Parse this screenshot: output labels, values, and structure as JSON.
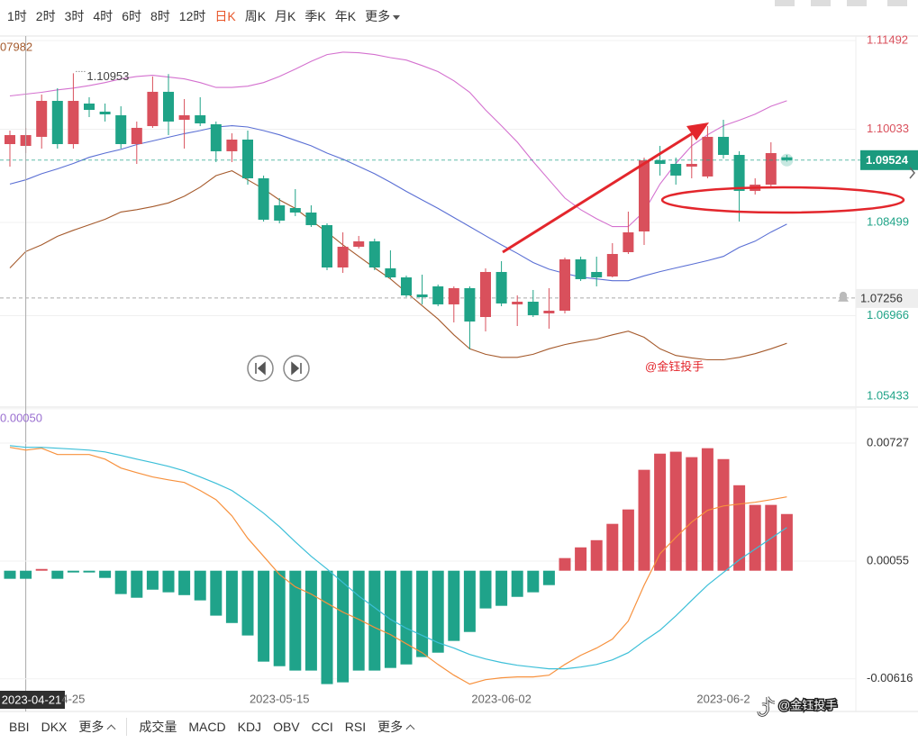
{
  "toolbar": {
    "periods": [
      "1时",
      "2时",
      "3时",
      "4时",
      "6时",
      "8时",
      "12时",
      "日K",
      "周K",
      "月K",
      "季K",
      "年K"
    ],
    "more": "更多",
    "active": 7
  },
  "chart_data": [
    {
      "type": "candlestick",
      "categories": [
        null,
        "2023-04-21",
        null,
        null,
        "4-25",
        null,
        null,
        null,
        null,
        null,
        null,
        null,
        null,
        null,
        null,
        null,
        null,
        "2023-05-15",
        null,
        null,
        null,
        null,
        null,
        null,
        null,
        null,
        null,
        null,
        null,
        null,
        null,
        "2023-06-02",
        null,
        null,
        null,
        null,
        null,
        null,
        null,
        null,
        null,
        null,
        null,
        null,
        null,
        "2023-06-2",
        null,
        null,
        null,
        null
      ],
      "crosshair": 1,
      "open": [
        1.09788,
        1.09758,
        1.09907,
        1.10499,
        1.09788,
        1.10455,
        1.10322,
        1.10262,
        1.09788,
        1.10084,
        1.10648,
        1.10188,
        1.10262,
        1.10114,
        1.0967,
        1.09862,
        1.09225,
        1.08781,
        1.08736,
        1.08662,
        1.08455,
        1.07758,
        1.08099,
        1.08188,
        1.07744,
        1.07595,
        1.07314,
        1.07447,
        1.07151,
        1.07418,
        1.06943,
        1.07684,
        1.07151,
        1.07195,
        1.07003,
        1.07047,
        1.07892,
        1.07684,
        1.0761,
        1.0801,
        1.08351,
        1.09521,
        1.09462,
        1.09418,
        1.09255,
        1.09907,
        1.0961,
        1.09018,
        1.09121,
        1.0957
      ],
      "high": [
        1.1001,
        1.10055,
        1.10603,
        1.10707,
        1.10953,
        1.10559,
        1.10455,
        1.1041,
        1.10159,
        1.109,
        1.1094,
        1.10529,
        1.10559,
        1.10159,
        1.09966,
        1.1001,
        1.0927,
        1.08899,
        1.09047,
        1.08781,
        1.08484,
        1.08336,
        1.08277,
        1.08232,
        1.0804,
        1.07625,
        1.0764,
        1.07477,
        1.07447,
        1.07447,
        1.07744,
        1.07862,
        1.07299,
        1.07388,
        1.07418,
        1.07921,
        1.07936,
        1.07936,
        1.08158,
        1.08677,
        1.09566,
        1.09758,
        1.09566,
        1.09936,
        1.10084,
        1.10188,
        1.0967,
        1.09225,
        1.09818,
        1.0961
      ],
      "low": [
        1.09418,
        1.0964,
        1.09714,
        1.09714,
        1.09714,
        1.10233,
        1.10159,
        1.09714,
        1.09462,
        1.10055,
        1.09936,
        1.09714,
        1.10084,
        1.09492,
        1.09492,
        1.09121,
        1.08514,
        1.08484,
        1.08603,
        1.08425,
        1.07714,
        1.07669,
        1.08069,
        1.07714,
        1.07566,
        1.07269,
        1.07151,
        1.07121,
        1.06854,
        1.0641,
        1.06706,
        1.07121,
        1.06795,
        1.06943,
        1.06751,
        1.07003,
        1.07536,
        1.07447,
        1.07595,
        1.0798,
        1.08129,
        1.0927,
        1.09121,
        1.09225,
        1.09225,
        1.09551,
        1.08514,
        1.08958,
        1.09092,
        1.095
      ],
      "close": [
        1.09936,
        1.09936,
        1.10499,
        1.09788,
        1.10499,
        1.10351,
        1.10277,
        1.09788,
        1.10055,
        1.10648,
        1.10159,
        1.10262,
        1.10129,
        1.0967,
        1.09862,
        1.09225,
        1.08544,
        1.08529,
        1.08662,
        1.08455,
        1.07758,
        1.08099,
        1.08188,
        1.07758,
        1.07595,
        1.07299,
        1.07269,
        1.07151,
        1.07418,
        1.06869,
        1.07684,
        1.07166,
        1.07195,
        1.06973,
        1.07047,
        1.07892,
        1.07566,
        1.07595,
        1.0798,
        1.08336,
        1.09521,
        1.09462,
        1.0927,
        1.09462,
        1.09907,
        1.0961,
        1.09018,
        1.09121,
        1.0964,
        1.09524
      ],
      "up_color": "#d9505c",
      "down_color": "#1fa387",
      "bands": [
        {
          "color": "#d471cf",
          "values": [
            1.1058,
            1.1061,
            1.1064,
            1.1068,
            1.1071,
            1.1075,
            1.108,
            1.1086,
            1.109,
            1.1092,
            1.1089,
            1.1086,
            1.108,
            1.1072,
            1.1072,
            1.1074,
            1.108,
            1.109,
            1.1102,
            1.1115,
            1.1126,
            1.113,
            1.1129,
            1.1126,
            1.1121,
            1.1117,
            1.1108,
            1.1098,
            1.1083,
            1.1064,
            1.1035,
            1.1009,
            1.0982,
            1.095,
            1.092,
            1.089,
            1.0871,
            1.0856,
            1.0843,
            1.0843,
            1.0868,
            1.0913,
            1.0947,
            1.0976,
            1.0994,
            1.1009,
            1.1018,
            1.1028,
            1.1041,
            1.105
          ]
        },
        {
          "color": "#5a6fd4",
          "values": [
            1.0913,
            1.092,
            1.093,
            1.0938,
            1.0947,
            1.0957,
            1.0964,
            1.097,
            1.0978,
            1.0984,
            1.099,
            1.0996,
            1.1001,
            1.1007,
            1.1009,
            1.1007,
            1.1001,
            1.0994,
            1.0985,
            1.0976,
            1.0964,
            1.0954,
            1.0942,
            1.093,
            1.0916,
            1.0901,
            1.0887,
            1.0873,
            1.0858,
            1.0843,
            1.0828,
            1.0813,
            1.0799,
            1.0784,
            1.0773,
            1.0766,
            1.076,
            1.0757,
            1.0754,
            1.0754,
            1.0762,
            1.0769,
            1.0775,
            1.0781,
            1.0787,
            1.0794,
            1.0809,
            1.0819,
            1.0834,
            1.0847
          ]
        },
        {
          "color": "#a55a2c",
          "values": [
            1.0775,
            1.0802,
            1.0813,
            1.0827,
            1.0837,
            1.0846,
            1.0855,
            1.0867,
            1.0871,
            1.0876,
            1.0882,
            1.0893,
            1.0908,
            1.0927,
            1.0935,
            1.092,
            1.0905,
            1.0887,
            1.0873,
            1.0853,
            1.0834,
            1.0813,
            1.0794,
            1.0775,
            1.0757,
            1.0735,
            1.0713,
            1.0691,
            1.0665,
            1.0642,
            1.0633,
            1.0628,
            1.0628,
            1.0633,
            1.0642,
            1.0649,
            1.0654,
            1.0658,
            1.0665,
            1.0671,
            1.0661,
            1.0642,
            1.0631,
            1.0627,
            1.0624,
            1.0624,
            1.0628,
            1.0634,
            1.0642,
            1.0651
          ]
        }
      ],
      "ylim": [
        1.05417,
        1.1164
      ],
      "yticks": [
        1.11492,
        1.10033,
        1.08499,
        1.06966,
        1.05433
      ],
      "alert_price": 1.07256,
      "indicator_value": "07982",
      "annotation": "@金钰投手"
    },
    {
      "type": "macd",
      "indicator_value": "0.00050",
      "histogram": [
        -0.00046,
        -0.00046,
        0.0001,
        -0.00046,
        -0.0001,
        -0.0001,
        -0.00041,
        -0.00133,
        -0.00154,
        -0.00108,
        -0.00123,
        -0.00139,
        -0.00169,
        -0.00256,
        -0.00298,
        -0.00369,
        -0.00518,
        -0.00544,
        -0.00569,
        -0.00569,
        -0.00646,
        -0.00636,
        -0.00569,
        -0.00569,
        -0.00554,
        -0.00534,
        -0.00492,
        -0.00467,
        -0.004,
        -0.00349,
        -0.00215,
        -0.002,
        -0.00149,
        -0.00123,
        -0.00082,
        0.00072,
        0.00133,
        0.00174,
        0.00267,
        0.00349,
        0.00575,
        0.00667,
        0.00678,
        0.00647,
        0.00698,
        0.00636,
        0.00487,
        0.00375,
        0.00375,
        0.00323
      ],
      "up_color": "#d9505c",
      "down_color": "#1fa38a",
      "series": [
        {
          "color": "#f7913d",
          "values": [
            0.00703,
            0.00687,
            0.00698,
            0.00662,
            0.00662,
            0.00662,
            0.00636,
            0.00585,
            0.00559,
            0.00534,
            0.00518,
            0.00503,
            0.00457,
            0.00405,
            0.00313,
            0.00185,
            0.00082,
            -0.00021,
            -0.00092,
            -0.00133,
            -0.00185,
            -0.00236,
            -0.00277,
            -0.00323,
            -0.00364,
            -0.00416,
            -0.00467,
            -0.00534,
            -0.00595,
            -0.00646,
            -0.00621,
            -0.0061,
            -0.00605,
            -0.00605,
            -0.00595,
            -0.00534,
            -0.00482,
            -0.00441,
            -0.0039,
            -0.00287,
            -0.00082,
            0.00097,
            0.0019,
            0.00277,
            0.00344,
            0.00369,
            0.0038,
            0.0039,
            0.00405,
            0.00421
          ]
        },
        {
          "color": "#3cbfd8",
          "values": [
            0.00713,
            0.00703,
            0.00703,
            0.00698,
            0.00693,
            0.00687,
            0.00677,
            0.00657,
            0.00636,
            0.00616,
            0.00595,
            0.00569,
            0.00534,
            0.00498,
            0.00457,
            0.00395,
            0.00328,
            0.00251,
            0.00164,
            0.00082,
            0.0001,
            -0.00067,
            -0.00144,
            -0.0021,
            -0.00277,
            -0.00328,
            -0.00369,
            -0.0041,
            -0.00441,
            -0.00477,
            -0.00503,
            -0.00523,
            -0.00539,
            -0.00549,
            -0.00559,
            -0.00559,
            -0.00549,
            -0.00534,
            -0.00508,
            -0.00467,
            -0.004,
            -0.00339,
            -0.00257,
            -0.00169,
            -0.00082,
            -0.0001,
            0.00062,
            0.00123,
            0.00185,
            0.00246
          ]
        }
      ],
      "ylim": [
        -0.00802,
        0.00917
      ],
      "yticks": [
        0.00727,
        0.00055,
        -0.00616
      ]
    }
  ],
  "indicator_bar": {
    "group1": [
      "BBI",
      "DKX"
    ],
    "more1": "更多",
    "group2": [
      "成交量",
      "MACD",
      "KDJ",
      "OBV",
      "CCI",
      "RSI"
    ],
    "more2": "更多"
  },
  "watermark": "@金钰投手"
}
